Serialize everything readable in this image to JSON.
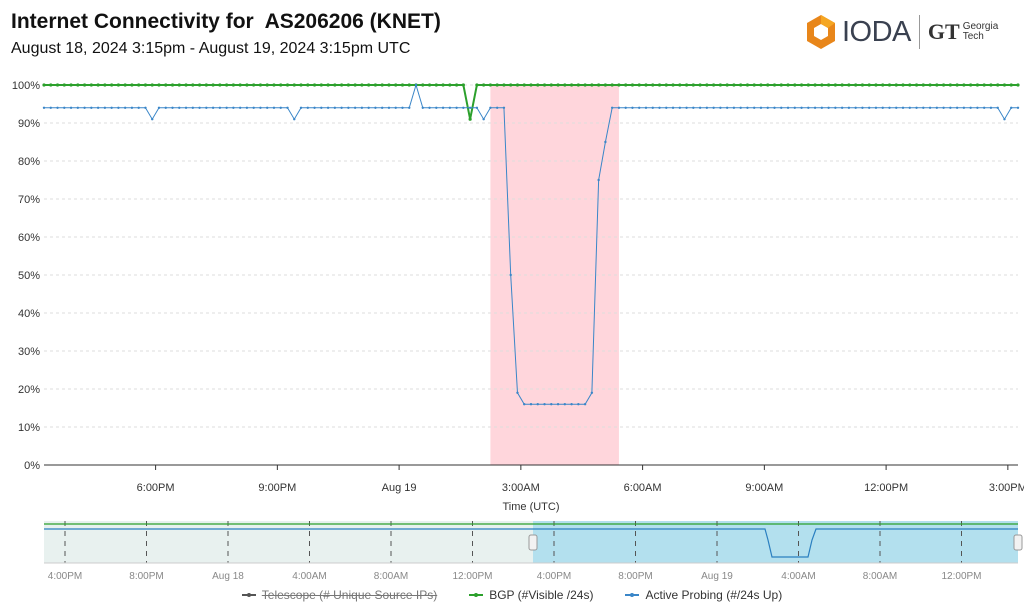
{
  "header": {
    "title": "Internet Connectivity for  AS206206 (KNET)",
    "subtitle": "August 18, 2024 3:15pm - August 19, 2024 3:15pm UTC",
    "logo": "IODA",
    "partner_logo": "Georgia Tech"
  },
  "chart_data": {
    "type": "line",
    "xlabel": "Time (UTC)",
    "ylabel": "",
    "xlim": [
      "2024-08-18T15:15",
      "2024-08-19T15:15"
    ],
    "ylim": [
      0,
      100
    ],
    "y_ticks": [
      "0%",
      "10%",
      "20%",
      "30%",
      "40%",
      "50%",
      "60%",
      "70%",
      "80%",
      "90%",
      "100%"
    ],
    "x_ticks": [
      {
        "t": "2024-08-18T18:00",
        "label": "6:00PM"
      },
      {
        "t": "2024-08-18T21:00",
        "label": "9:00PM"
      },
      {
        "t": "2024-08-19T00:00",
        "label": "Aug 19"
      },
      {
        "t": "2024-08-19T03:00",
        "label": "3:00AM"
      },
      {
        "t": "2024-08-19T06:00",
        "label": "6:00AM"
      },
      {
        "t": "2024-08-19T09:00",
        "label": "9:00AM"
      },
      {
        "t": "2024-08-19T12:00",
        "label": "12:00PM"
      },
      {
        "t": "2024-08-19T15:00",
        "label": "3:00PM"
      }
    ],
    "grid": true,
    "outage_region": [
      "2024-08-19T02:15",
      "2024-08-19T05:25"
    ],
    "series": [
      {
        "name": "BGP (#Visible /24s)",
        "color": "#2ca02c",
        "points": [
          [
            "2024-08-18T15:15",
            100
          ],
          [
            "2024-08-19T01:35",
            100
          ],
          [
            "2024-08-19T01:45",
            91
          ],
          [
            "2024-08-19T01:55",
            100
          ],
          [
            "2024-08-19T15:15",
            100
          ]
        ]
      },
      {
        "name": "Active Probing (#/24s Up)",
        "color": "#3a86c8",
        "points": [
          [
            "2024-08-18T15:15",
            94
          ],
          [
            "2024-08-18T17:45",
            94
          ],
          [
            "2024-08-18T17:55",
            91
          ],
          [
            "2024-08-18T18:05",
            94
          ],
          [
            "2024-08-18T21:15",
            94
          ],
          [
            "2024-08-18T21:25",
            91
          ],
          [
            "2024-08-18T21:35",
            94
          ],
          [
            "2024-08-19T00:15",
            94
          ],
          [
            "2024-08-19T00:25",
            100
          ],
          [
            "2024-08-19T00:35",
            94
          ],
          [
            "2024-08-19T01:55",
            94
          ],
          [
            "2024-08-19T02:05",
            91
          ],
          [
            "2024-08-19T02:15",
            94
          ],
          [
            "2024-08-19T02:35",
            94
          ],
          [
            "2024-08-19T02:45",
            50
          ],
          [
            "2024-08-19T02:55",
            19
          ],
          [
            "2024-08-19T03:05",
            16
          ],
          [
            "2024-08-19T04:35",
            16
          ],
          [
            "2024-08-19T04:45",
            19
          ],
          [
            "2024-08-19T04:55",
            75
          ],
          [
            "2024-08-19T05:05",
            85
          ],
          [
            "2024-08-19T05:15",
            94
          ],
          [
            "2024-08-19T14:45",
            94
          ],
          [
            "2024-08-19T14:55",
            91
          ],
          [
            "2024-08-19T15:05",
            94
          ],
          [
            "2024-08-19T15:15",
            94
          ]
        ]
      }
    ],
    "navigator": {
      "x_ticks": [
        "4:00PM",
        "8:00PM",
        "Aug 18",
        "4:00AM",
        "8:00AM",
        "12:00PM",
        "4:00PM",
        "8:00PM",
        "Aug 19",
        "4:00AM",
        "8:00AM",
        "12:00PM"
      ],
      "selected": [
        "2024-08-18T15:15",
        "2024-08-19T15:15"
      ]
    },
    "legend": [
      {
        "label": "Telescope (# Unique Source IPs)",
        "color": "#555555",
        "disabled": true
      },
      {
        "label": "BGP (#Visible /24s)",
        "color": "#2ca02c"
      },
      {
        "label": "Active Probing (#/24s Up)",
        "color": "#3a86c8"
      }
    ]
  }
}
